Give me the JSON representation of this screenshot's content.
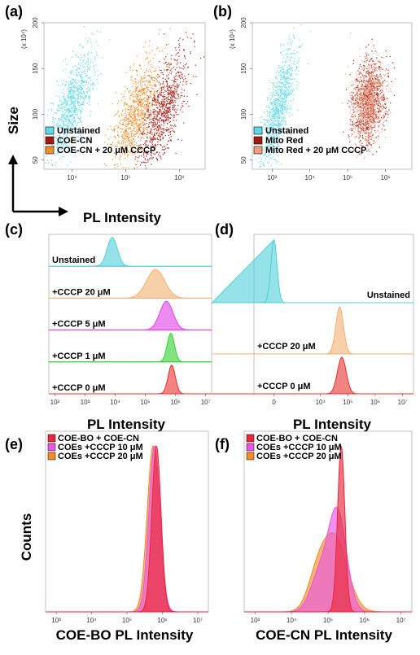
{
  "figure": {
    "big_ylabel_size": "Size",
    "big_xlabel_pl": "PL Intensity",
    "counts_label": "Counts"
  },
  "chart_data": [
    {
      "panel": "(a)",
      "type": "scatter",
      "ylabel": "Size",
      "xlabel": "PL Intensity",
      "y_multiplier": "(x 10⁴)",
      "xscale": "log",
      "xlim": [
        3000,
        3000000
      ],
      "ylim": [
        40,
        200
      ],
      "xticks": [
        "10⁴",
        "10⁵",
        "10⁶"
      ],
      "xtick_values": [
        10000,
        100000,
        1000000
      ],
      "yticks": [
        "50",
        "100",
        "150",
        "200"
      ],
      "legend": [
        "Unstained",
        "COE-CN",
        "COE-CN + 20 μM CCCP"
      ],
      "legend_loc": "bottom-left",
      "series": [
        {
          "name": "Unstained",
          "color": "#5fd8e8",
          "x_center": 10000,
          "y_center": 110,
          "tilt": 1.0
        },
        {
          "name": "COE-CN + 20 μM CCCP",
          "color": "#f28c28",
          "x_center": 150000,
          "y_center": 100,
          "tilt": 0.9
        },
        {
          "name": "COE-CN",
          "color": "#a31a10",
          "x_center": 500000,
          "y_center": 105,
          "tilt": 1.0
        }
      ]
    },
    {
      "panel": "(b)",
      "type": "scatter",
      "y_multiplier": "(x 10⁴)",
      "xscale": "log",
      "xlim": [
        300,
        5000000
      ],
      "ylim": [
        40,
        200
      ],
      "xticks": [
        "10³",
        "10⁴",
        "10⁵",
        "10⁶"
      ],
      "xtick_values": [
        1000,
        10000,
        100000,
        1000000
      ],
      "yticks": [
        "50",
        "100",
        "150",
        "200"
      ],
      "legend": [
        "Unstained",
        "Mito Red",
        "Mito Red + 20 μM CCCP"
      ],
      "legend_loc": "bottom-left",
      "series": [
        {
          "name": "Unstained",
          "color": "#5fd8e8",
          "x_center": 1500,
          "y_center": 110,
          "tilt": 1.0
        },
        {
          "name": "Mito Red",
          "color": "#a31a10",
          "x_center": 350000,
          "y_center": 115,
          "tilt": 0.2
        },
        {
          "name": "Mito Red + 20 μM CCCP",
          "color": "#f0a080",
          "x_center": 350000,
          "y_center": 115,
          "tilt": 0.2
        }
      ]
    },
    {
      "panel": "(c)",
      "type": "area",
      "xlabel": "PL Intensity",
      "xscale": "log",
      "xticks": [
        "10²",
        "10³",
        "10⁴",
        "10⁵",
        "10⁶",
        "10⁷"
      ],
      "series": [
        {
          "name": "Unstained",
          "color": "#4fd0d8",
          "peak": 8000,
          "width": 0.17
        },
        {
          "name": "+CCCP 20 μM",
          "color": "#f2b070",
          "peak": 220000,
          "width": 0.3
        },
        {
          "name": "+CCCP 5 μM",
          "color": "#e040e8",
          "peak": 500000,
          "width": 0.22
        },
        {
          "name": "+CCCP 1 μM",
          "color": "#30d030",
          "peak": 700000,
          "width": 0.12
        },
        {
          "name": "+CCCP 0 μM",
          "color": "#e83030",
          "peak": 750000,
          "width": 0.12
        }
      ]
    },
    {
      "panel": "(d)",
      "type": "area",
      "xlabel": "PL Intensity",
      "xticks": [
        "0",
        "10⁴",
        "10⁵",
        "10⁶",
        "10⁷"
      ],
      "series": [
        {
          "name": "Unstained",
          "color": "#4fd0d8",
          "peak": 0,
          "width": 0.12
        },
        {
          "name": "+CCCP 20 μM",
          "color": "#f2b070",
          "peak": 50000,
          "width": 0.15
        },
        {
          "name": "+CCCP 0 μM",
          "color": "#e83030",
          "peak": 60000,
          "width": 0.17
        }
      ]
    },
    {
      "panel": "(e)",
      "type": "area",
      "xlabel": "COE-BO PL Intensity",
      "ylabel": "Counts",
      "xscale": "log",
      "xticks": [
        "10³",
        "10⁴",
        "10⁵",
        "10⁶",
        "10⁷"
      ],
      "legend": [
        "COE-BO + COE-CN",
        "COEs +CCCP 10 μM",
        "COEs +CCCP 20 μM"
      ],
      "legend_loc": "top-left",
      "series": [
        {
          "name": "COEs +CCCP 20 μM",
          "color": "#f28c28",
          "peak": 550000,
          "width": 0.17
        },
        {
          "name": "COEs +CCCP 10 μM",
          "color": "#e858e0",
          "peak": 600000,
          "width": 0.16
        },
        {
          "name": "COE-BO + COE-CN",
          "color": "#e8283c",
          "peak": 680000,
          "width": 0.13
        }
      ]
    },
    {
      "panel": "(f)",
      "type": "area",
      "xlabel": "COE-CN PL Intensity",
      "xscale": "log",
      "xticks": [
        "10³",
        "10⁴",
        "10⁵",
        "10⁶",
        "10⁷"
      ],
      "legend": [
        "COE-BO + COE-CN",
        "COEs +CCCP 10 μM",
        "COEs +CCCP 20 μM"
      ],
      "legend_loc": "top-left",
      "series": [
        {
          "name": "COEs +CCCP 20 μM",
          "color": "#f28c28",
          "peak": 150000,
          "width": 0.35,
          "rel": 0.45
        },
        {
          "name": "COEs +CCCP 10 μM",
          "color": "#e858e0",
          "peak": 180000,
          "width": 0.25,
          "rel": 0.6
        },
        {
          "name": "COE-BO + COE-CN",
          "color": "#e8283c",
          "peak": 230000,
          "width": 0.1,
          "rel": 1.0
        }
      ]
    }
  ]
}
